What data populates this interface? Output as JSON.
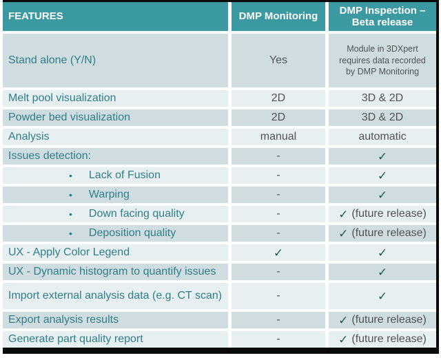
{
  "title": "DMP Monitoring vs DMP Inspection feature comparison table",
  "colors": {
    "header_bg": "#3b9aa1",
    "header_text": "#ffffff",
    "row_dark": "#cfdde1",
    "row_light": "#e7eff1",
    "feature_text": "#2f7e88",
    "value_text": "#525254",
    "check": "#1f5b50",
    "border": "#0a0a0a",
    "page_bg": "#ffffff"
  },
  "glyphs": {
    "bullet_char": "•",
    "check_char": "✓"
  },
  "header": {
    "features_label": "FEATURES",
    "monitoring_label": "DMP Monitoring",
    "inspection_label": "DMP Inspection – Beta release"
  },
  "rows": [
    {
      "label": "Stand alone (Y/N)",
      "indent": false,
      "monitoring": {
        "check": false,
        "text": "Yes"
      },
      "inspection": {
        "check": false,
        "text": "Module in 3DXpert requires data recorded by DMP Monitoring",
        "small": true
      }
    },
    {
      "label": "Melt pool visualization",
      "indent": false,
      "monitoring": {
        "check": false,
        "text": "2D"
      },
      "inspection": {
        "check": false,
        "text": "3D & 2D"
      }
    },
    {
      "label": "Powder bed visualization",
      "indent": false,
      "monitoring": {
        "check": false,
        "text": "2D"
      },
      "inspection": {
        "check": false,
        "text": "3D & 2D"
      }
    },
    {
      "label": "Analysis",
      "indent": false,
      "monitoring": {
        "check": false,
        "text": "manual"
      },
      "inspection": {
        "check": false,
        "text": "automatic"
      }
    },
    {
      "label": "Issues detection:",
      "indent": false,
      "monitoring": {
        "check": false,
        "text": "-"
      },
      "inspection": {
        "check": true,
        "text": ""
      }
    },
    {
      "label": "Lack of Fusion",
      "indent": true,
      "monitoring": {
        "check": false,
        "text": "-"
      },
      "inspection": {
        "check": true,
        "text": ""
      }
    },
    {
      "label": "Warping",
      "indent": true,
      "monitoring": {
        "check": false,
        "text": "-"
      },
      "inspection": {
        "check": true,
        "text": ""
      }
    },
    {
      "label": "Down facing quality",
      "indent": true,
      "monitoring": {
        "check": false,
        "text": "-"
      },
      "inspection": {
        "check": true,
        "text": "(future release)"
      }
    },
    {
      "label": "Deposition quality",
      "indent": true,
      "monitoring": {
        "check": false,
        "text": "-"
      },
      "inspection": {
        "check": true,
        "text": "(future release)"
      }
    },
    {
      "label": "UX - Apply Color Legend",
      "indent": false,
      "monitoring": {
        "check": true,
        "text": ""
      },
      "inspection": {
        "check": true,
        "text": ""
      }
    },
    {
      "label": "UX - Dynamic histogram to quantify issues",
      "indent": false,
      "monitoring": {
        "check": false,
        "text": "-"
      },
      "inspection": {
        "check": true,
        "text": ""
      }
    },
    {
      "label": "Import external analysis data (e.g. CT scan)",
      "indent": false,
      "monitoring": {
        "check": false,
        "text": "-"
      },
      "inspection": {
        "check": true,
        "text": ""
      }
    },
    {
      "label": "Export analysis results",
      "indent": false,
      "monitoring": {
        "check": false,
        "text": "-"
      },
      "inspection": {
        "check": true,
        "text": "(future release)"
      }
    },
    {
      "label": "Generate part quality report",
      "indent": false,
      "monitoring": {
        "check": false,
        "text": "-"
      },
      "inspection": {
        "check": true,
        "text": "(future release)"
      }
    }
  ]
}
